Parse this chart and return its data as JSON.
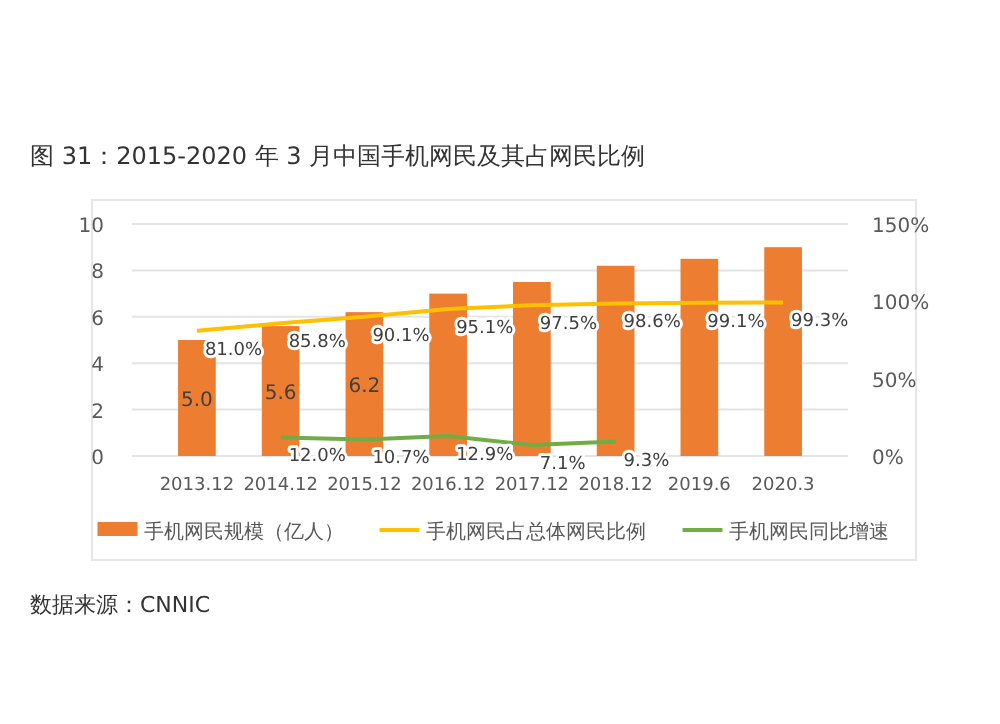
{
  "chart_data": {
    "type": "bar",
    "title": "图 31：2015-2020 年 3 月中国手机网民及其占网民比例",
    "categories": [
      "2013.12",
      "2014.12",
      "2015.12",
      "2016.12",
      "2017.12",
      "2018.12",
      "2019.6",
      "2020.3"
    ],
    "series": [
      {
        "name": "手机网民规模（亿人）",
        "color": "#ed7d31",
        "values": [
          5.0,
          5.6,
          6.2,
          7.0,
          7.5,
          8.2,
          8.5,
          9.0
        ],
        "value_labels": [
          "5.0",
          "5.6",
          "6.2",
          null,
          null,
          null,
          null,
          null
        ]
      },
      {
        "name": "手机网民占总体网民比例",
        "type": "line",
        "axis": "y2",
        "color": "#ffc000",
        "values": [
          81.0,
          85.8,
          90.1,
          95.1,
          97.5,
          98.6,
          99.1,
          99.3
        ],
        "value_labels": [
          "81.0%",
          "85.8%",
          "90.1%",
          "95.1%",
          "97.5%",
          "98.6%",
          "99.1%",
          "99.3%"
        ]
      },
      {
        "name": "手机网民同比增速",
        "type": "line",
        "axis": "y2",
        "color": "#70ad47",
        "values": [
          null,
          12.0,
          10.7,
          12.9,
          7.1,
          9.3,
          null,
          null
        ],
        "value_labels": [
          null,
          "12.0%",
          "10.7%",
          "12.9%",
          "7.1%",
          "9.3%",
          null,
          null
        ]
      }
    ],
    "ylim": [
      0,
      10
    ],
    "yticks": [
      0,
      2,
      4,
      6,
      8,
      10
    ],
    "y2lim": [
      0,
      150
    ],
    "y2ticks": [
      {
        "value": 0,
        "label": "0%"
      },
      {
        "value": 50,
        "label": "50%"
      },
      {
        "value": 100,
        "label": "100%"
      },
      {
        "value": 150,
        "label": "150%"
      }
    ],
    "grid": "y",
    "legend": "bottom",
    "marker": "none",
    "annotations": [
      "数据来源：CNNIC"
    ]
  }
}
